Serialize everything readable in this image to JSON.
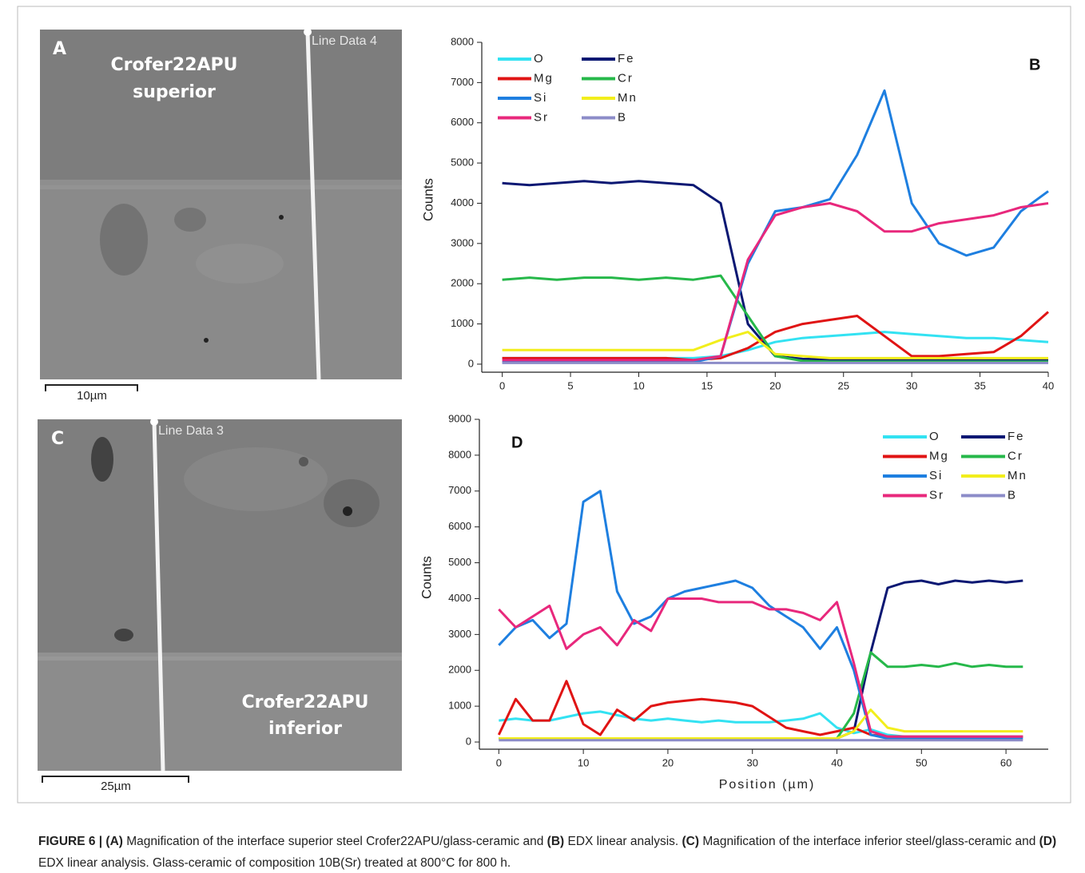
{
  "panels": {
    "A": {
      "letter": "A",
      "title": [
        "Crofer22APU",
        "superior"
      ],
      "line_label": "Line Data 4",
      "scale": "10µm"
    },
    "C": {
      "letter": "C",
      "title": [
        "Crofer22APU",
        "inferior"
      ],
      "line_label": "Line Data 3",
      "scale": "25µm"
    }
  },
  "chart_data": [
    {
      "type": "line",
      "panel_label": "B",
      "y_label": "Counts",
      "legend": "upper left",
      "xlim": [
        -1.5,
        40
      ],
      "ylim": [
        -200,
        8000
      ],
      "xticks": [
        0,
        5,
        10,
        15,
        20,
        25,
        30,
        35,
        40
      ],
      "yticks": [
        0,
        1000,
        2000,
        3000,
        4000,
        5000,
        6000,
        7000,
        8000
      ],
      "x": [
        0,
        2,
        4,
        6,
        8,
        10,
        12,
        14,
        16,
        18,
        20,
        22,
        24,
        26,
        28,
        30,
        32,
        34,
        36,
        38,
        40
      ],
      "series": [
        {
          "name": "O",
          "color": "#33e2f2",
          "values": [
            150,
            150,
            150,
            150,
            150,
            150,
            150,
            150,
            200,
            350,
            550,
            650,
            700,
            750,
            800,
            750,
            700,
            650,
            650,
            600,
            550
          ]
        },
        {
          "name": "Fe",
          "color": "#0b1873",
          "values": [
            4500,
            4450,
            4500,
            4550,
            4500,
            4550,
            4500,
            4450,
            4000,
            1000,
            200,
            130,
            120,
            120,
            120,
            120,
            120,
            120,
            120,
            120,
            120
          ]
        },
        {
          "name": "Mg",
          "color": "#e01414",
          "values": [
            150,
            150,
            150,
            150,
            150,
            150,
            150,
            100,
            150,
            400,
            800,
            1000,
            1100,
            1200,
            700,
            200,
            200,
            250,
            300,
            700,
            1300
          ]
        },
        {
          "name": "Cr",
          "color": "#26b84a",
          "values": [
            2100,
            2150,
            2100,
            2150,
            2150,
            2100,
            2150,
            2100,
            2200,
            1200,
            200,
            80,
            60,
            60,
            60,
            60,
            60,
            60,
            60,
            60,
            60
          ]
        },
        {
          "name": "Si",
          "color": "#1e7fe0",
          "values": [
            50,
            50,
            50,
            50,
            50,
            50,
            50,
            50,
            200,
            2500,
            3800,
            3900,
            4100,
            5200,
            6800,
            4000,
            3000,
            2700,
            2900,
            3800,
            4300
          ]
        },
        {
          "name": "Mn",
          "color": "#f2ee1c",
          "values": [
            350,
            350,
            350,
            350,
            350,
            350,
            350,
            350,
            600,
            800,
            250,
            200,
            150,
            150,
            150,
            150,
            150,
            150,
            150,
            150,
            150
          ]
        },
        {
          "name": "Sr",
          "color": "#e8287c",
          "values": [
            100,
            100,
            100,
            100,
            100,
            100,
            100,
            100,
            200,
            2600,
            3700,
            3900,
            4000,
            3800,
            3300,
            3300,
            3500,
            3600,
            3700,
            3900,
            4000
          ]
        },
        {
          "name": "B",
          "color": "#8c8cc8",
          "values": [
            30,
            30,
            30,
            30,
            30,
            30,
            30,
            30,
            30,
            30,
            30,
            30,
            30,
            30,
            30,
            30,
            30,
            30,
            30,
            30,
            30
          ]
        }
      ]
    },
    {
      "type": "line",
      "panel_label": "D",
      "y_label": "Counts",
      "x_label": "Position (µm)",
      "legend": "upper right",
      "xlim": [
        -2.3,
        65
      ],
      "ylim": [
        -200,
        9000
      ],
      "xticks": [
        0,
        10,
        20,
        30,
        40,
        50,
        60
      ],
      "yticks": [
        0,
        1000,
        2000,
        3000,
        4000,
        5000,
        6000,
        7000,
        8000,
        9000
      ],
      "x": [
        0,
        2,
        4,
        6,
        8,
        10,
        12,
        14,
        16,
        18,
        20,
        22,
        24,
        26,
        28,
        30,
        32,
        34,
        36,
        38,
        40,
        42,
        44,
        46,
        48,
        50,
        52,
        54,
        56,
        58,
        60,
        62
      ],
      "series": [
        {
          "name": "O",
          "color": "#33e2f2",
          "values": [
            600,
            650,
            600,
            600,
            700,
            800,
            850,
            750,
            650,
            600,
            650,
            600,
            550,
            600,
            550,
            550,
            550,
            600,
            650,
            800,
            400,
            250,
            350,
            200,
            150,
            150,
            150,
            150,
            150,
            150,
            150,
            150
          ]
        },
        {
          "name": "Fe",
          "color": "#0b1873",
          "values": [
            100,
            100,
            100,
            100,
            100,
            100,
            100,
            100,
            100,
            100,
            100,
            100,
            100,
            100,
            100,
            100,
            100,
            100,
            100,
            100,
            100,
            300,
            2500,
            4300,
            4450,
            4500,
            4400,
            4500,
            4450,
            4500,
            4450,
            4500
          ]
        },
        {
          "name": "Mg",
          "color": "#e01414",
          "values": [
            200,
            1200,
            600,
            600,
            1700,
            500,
            200,
            900,
            600,
            1000,
            1100,
            1150,
            1200,
            1150,
            1100,
            1000,
            700,
            400,
            300,
            200,
            300,
            400,
            200,
            150,
            150,
            150,
            150,
            150,
            150,
            150,
            150,
            150
          ]
        },
        {
          "name": "Cr",
          "color": "#26b84a",
          "values": [
            100,
            100,
            100,
            100,
            100,
            100,
            100,
            100,
            100,
            100,
            100,
            100,
            100,
            100,
            100,
            100,
            100,
            100,
            100,
            100,
            100,
            800,
            2500,
            2100,
            2100,
            2150,
            2100,
            2200,
            2100,
            2150,
            2100,
            2100
          ]
        },
        {
          "name": "Si",
          "color": "#1e7fe0",
          "values": [
            2700,
            3200,
            3400,
            2900,
            3300,
            6700,
            7000,
            4200,
            3300,
            3500,
            4000,
            4200,
            4300,
            4400,
            4500,
            4300,
            3800,
            3500,
            3200,
            2600,
            3200,
            2000,
            200,
            100,
            100,
            100,
            100,
            100,
            100,
            100,
            100,
            100
          ]
        },
        {
          "name": "Mn",
          "color": "#f2ee1c",
          "values": [
            100,
            100,
            100,
            100,
            100,
            100,
            100,
            100,
            100,
            100,
            100,
            100,
            100,
            100,
            100,
            100,
            100,
            100,
            100,
            100,
            100,
            300,
            900,
            400,
            300,
            300,
            300,
            300,
            300,
            300,
            300,
            300
          ]
        },
        {
          "name": "Sr",
          "color": "#e8287c",
          "values": [
            3700,
            3200,
            3500,
            3800,
            2600,
            3000,
            3200,
            2700,
            3400,
            3100,
            4000,
            4000,
            4000,
            3900,
            3900,
            3900,
            3700,
            3700,
            3600,
            3400,
            3900,
            2200,
            300,
            150,
            150,
            150,
            150,
            150,
            150,
            150,
            150,
            150
          ]
        },
        {
          "name": "B",
          "color": "#8c8cc8",
          "values": [
            50,
            50,
            50,
            50,
            50,
            50,
            50,
            50,
            50,
            50,
            50,
            50,
            50,
            50,
            50,
            50,
            50,
            50,
            50,
            50,
            50,
            50,
            50,
            50,
            50,
            50,
            50,
            50,
            50,
            50,
            50,
            50
          ]
        }
      ]
    }
  ],
  "caption": [
    "FIGURE 6 | (A)",
    " Magnification of the interface superior steel Crofer22APU/glass-ceramic and ",
    "(B)",
    " EDX linear analysis. ",
    "(C)",
    " Magnification of the interface inferior steel/glass-ceramic and ",
    "(D)",
    " EDX linear analysis. Glass-ceramic of composition 10B(Sr) treated at 800°C for 800 h."
  ]
}
